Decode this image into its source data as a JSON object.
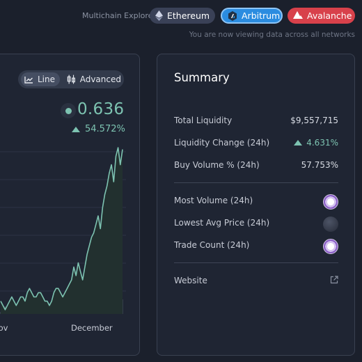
{
  "header": {
    "explorer_label": "Multichain Explorer",
    "networks": [
      {
        "label": "Ethereum",
        "icon": "ethereum-icon"
      },
      {
        "label": "Arbitrum",
        "icon": "arbitrum-icon",
        "active": true
      },
      {
        "label": "Avalanche",
        "icon": "avalanche-icon"
      }
    ],
    "viewing_text": "You are now viewing data across all networks"
  },
  "chart_panel": {
    "toggle": {
      "line_label": "Line",
      "advanced_label": "Advanced",
      "selected": "Line"
    },
    "price": "0.636",
    "change": "54.572%",
    "x_labels": [
      "Nov",
      "December"
    ],
    "colors": {
      "line": "#7dc3b1",
      "fill": "#23302f",
      "volume": "#4a5262"
    }
  },
  "chart_data": {
    "type": "line",
    "x_labels_visible": [
      "Nov",
      "December"
    ],
    "values": [
      0.28,
      0.27,
      0.26,
      0.27,
      0.28,
      0.29,
      0.28,
      0.27,
      0.28,
      0.29,
      0.29,
      0.28,
      0.3,
      0.31,
      0.3,
      0.29,
      0.29,
      0.3,
      0.3,
      0.29,
      0.28,
      0.28,
      0.27,
      0.28,
      0.3,
      0.31,
      0.31,
      0.3,
      0.29,
      0.3,
      0.31,
      0.32,
      0.33,
      0.36,
      0.34,
      0.37,
      0.35,
      0.33,
      0.36,
      0.39,
      0.41,
      0.43,
      0.44,
      0.46,
      0.48,
      0.45,
      0.5,
      0.53,
      0.55,
      0.58,
      0.6,
      0.56,
      0.62,
      0.64,
      0.6,
      0.636
    ],
    "ylim": [
      0.25,
      0.65
    ],
    "grid": true
  },
  "summary": {
    "title": "Summary",
    "rows": [
      {
        "label": "Total Liquidity",
        "value": "$9,557,715"
      },
      {
        "label": "Liquidity Change (24h)",
        "value": "4.631%"
      },
      {
        "label": "Buy Volume % (24h)",
        "value": "57.753%"
      }
    ],
    "token_rows": [
      {
        "label": "Most Volume (24h)",
        "icon": "token-avatar-icon"
      },
      {
        "label": "Lowest Avg Price (24h)",
        "icon": "token-placeholder-icon"
      },
      {
        "label": "Trade Count (24h)",
        "icon": "token-avatar-icon"
      }
    ],
    "website_label": "Website",
    "website_icon": "external-link-icon"
  }
}
